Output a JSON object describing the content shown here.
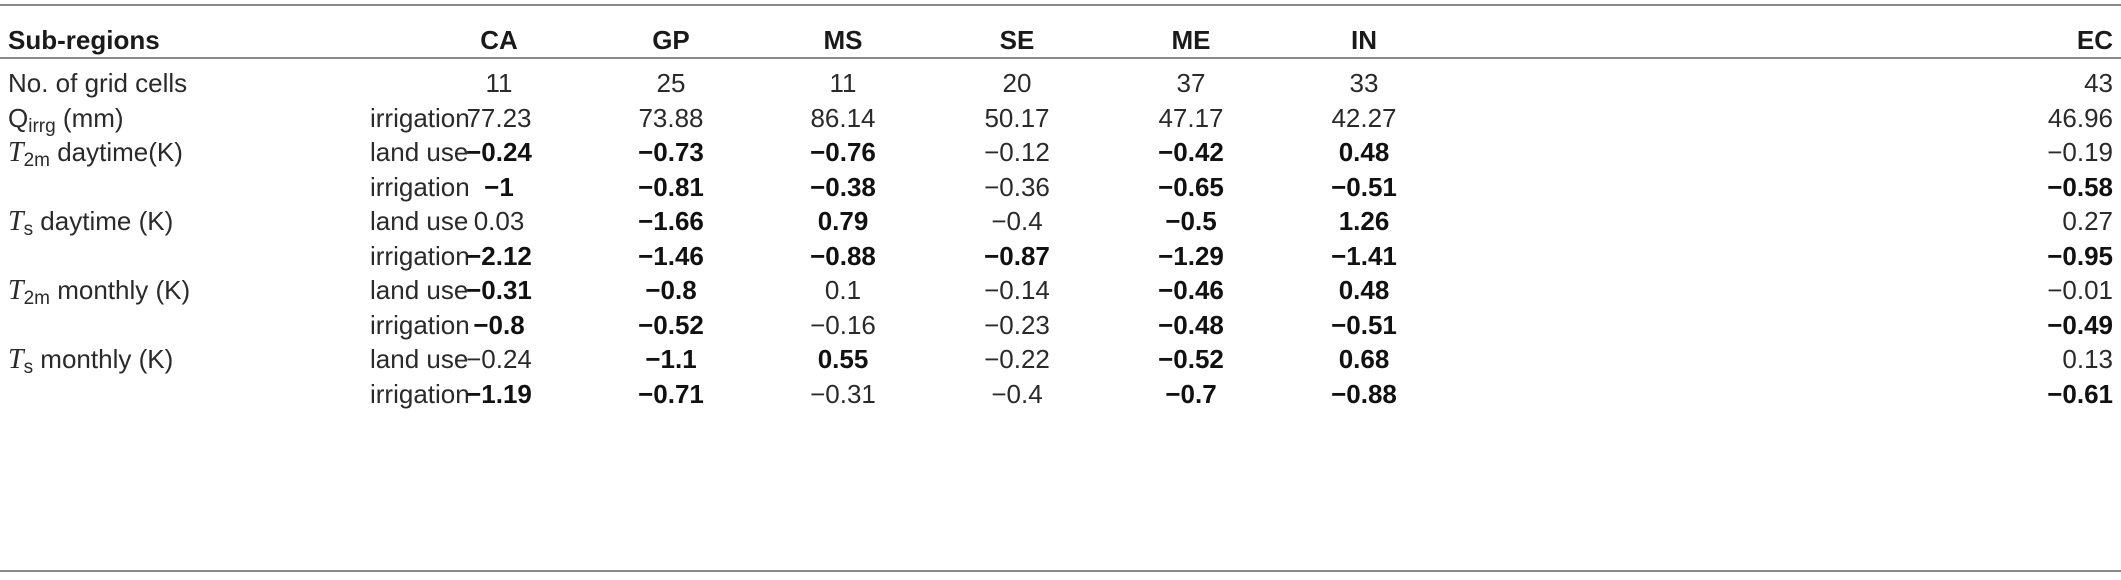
{
  "header": {
    "row_label": "Sub-regions",
    "columns": [
      "CA",
      "GP",
      "MS",
      "SE",
      "ME",
      "IN",
      "EC"
    ]
  },
  "rows": [
    {
      "var": "No. of grid cells",
      "exp": "",
      "cells": [
        {
          "v": "11",
          "b": false
        },
        {
          "v": "25",
          "b": false
        },
        {
          "v": "11",
          "b": false
        },
        {
          "v": "20",
          "b": false
        },
        {
          "v": "37",
          "b": false
        },
        {
          "v": "33",
          "b": false
        },
        {
          "v": "43",
          "b": false
        }
      ]
    },
    {
      "var": "Q",
      "var_sub": "irrg",
      "var_rest": " (mm)",
      "exp": "irrigation",
      "cells": [
        {
          "v": "77.23",
          "b": false
        },
        {
          "v": "73.88",
          "b": false
        },
        {
          "v": "86.14",
          "b": false
        },
        {
          "v": "50.17",
          "b": false
        },
        {
          "v": "47.17",
          "b": false
        },
        {
          "v": "42.27",
          "b": false
        },
        {
          "v": "46.96",
          "b": false
        }
      ]
    },
    {
      "var": "T",
      "var_italic": true,
      "var_sub": "2m",
      "var_rest": " daytime(K)",
      "exp": "land use",
      "cells": [
        {
          "v": "−0.24",
          "b": true
        },
        {
          "v": "−0.73",
          "b": true
        },
        {
          "v": "−0.76",
          "b": true
        },
        {
          "v": "−0.12",
          "b": false
        },
        {
          "v": "−0.42",
          "b": true
        },
        {
          "v": "0.48",
          "b": true
        },
        {
          "v": "−0.19",
          "b": false
        }
      ]
    },
    {
      "var": "",
      "exp": "irrigation",
      "cells": [
        {
          "v": "−1",
          "b": true
        },
        {
          "v": "−0.81",
          "b": true
        },
        {
          "v": "−0.38",
          "b": true
        },
        {
          "v": "−0.36",
          "b": false
        },
        {
          "v": "−0.65",
          "b": true
        },
        {
          "v": "−0.51",
          "b": true
        },
        {
          "v": "−0.58",
          "b": true
        }
      ]
    },
    {
      "var": "T",
      "var_italic": true,
      "var_sub": "s",
      "var_rest": " daytime (K)",
      "exp": "land use",
      "cells": [
        {
          "v": "0.03",
          "b": false
        },
        {
          "v": "−1.66",
          "b": true
        },
        {
          "v": "0.79",
          "b": true
        },
        {
          "v": "−0.4",
          "b": false
        },
        {
          "v": "−0.5",
          "b": true
        },
        {
          "v": "1.26",
          "b": true
        },
        {
          "v": "0.27",
          "b": false
        }
      ]
    },
    {
      "var": "",
      "exp": "irrigation",
      "cells": [
        {
          "v": "−2.12",
          "b": true
        },
        {
          "v": "−1.46",
          "b": true
        },
        {
          "v": "−0.88",
          "b": true
        },
        {
          "v": "−0.87",
          "b": true
        },
        {
          "v": "−1.29",
          "b": true
        },
        {
          "v": "−1.41",
          "b": true
        },
        {
          "v": "−0.95",
          "b": true
        }
      ]
    },
    {
      "var": "T",
      "var_italic": true,
      "var_sub": "2m",
      "var_rest": " monthly (K)",
      "exp": "land use",
      "cells": [
        {
          "v": "−0.31",
          "b": true
        },
        {
          "v": "−0.8",
          "b": true
        },
        {
          "v": "0.1",
          "b": false
        },
        {
          "v": "−0.14",
          "b": false
        },
        {
          "v": "−0.46",
          "b": true
        },
        {
          "v": "0.48",
          "b": true
        },
        {
          "v": "−0.01",
          "b": false
        }
      ]
    },
    {
      "var": "",
      "exp": "irrigation",
      "cells": [
        {
          "v": "−0.8",
          "b": true
        },
        {
          "v": "−0.52",
          "b": true
        },
        {
          "v": "−0.16",
          "b": false
        },
        {
          "v": "−0.23",
          "b": false
        },
        {
          "v": "−0.48",
          "b": true
        },
        {
          "v": "−0.51",
          "b": true
        },
        {
          "v": "−0.49",
          "b": true
        }
      ]
    },
    {
      "var": "T",
      "var_italic": true,
      "var_sub": "s",
      "var_rest": " monthly (K)",
      "exp": "land use",
      "cells": [
        {
          "v": "−0.24",
          "b": false
        },
        {
          "v": "−1.1",
          "b": true
        },
        {
          "v": "0.55",
          "b": true
        },
        {
          "v": "−0.22",
          "b": false
        },
        {
          "v": "−0.52",
          "b": true
        },
        {
          "v": "0.68",
          "b": true
        },
        {
          "v": "0.13",
          "b": false
        }
      ]
    },
    {
      "var": "",
      "exp": "irrigation",
      "cells": [
        {
          "v": "−1.19",
          "b": true
        },
        {
          "v": "−0.71",
          "b": true
        },
        {
          "v": "−0.31",
          "b": false
        },
        {
          "v": "−0.4",
          "b": false
        },
        {
          "v": "−0.7",
          "b": true
        },
        {
          "v": "−0.88",
          "b": true
        },
        {
          "v": "−0.61",
          "b": true
        }
      ]
    }
  ]
}
